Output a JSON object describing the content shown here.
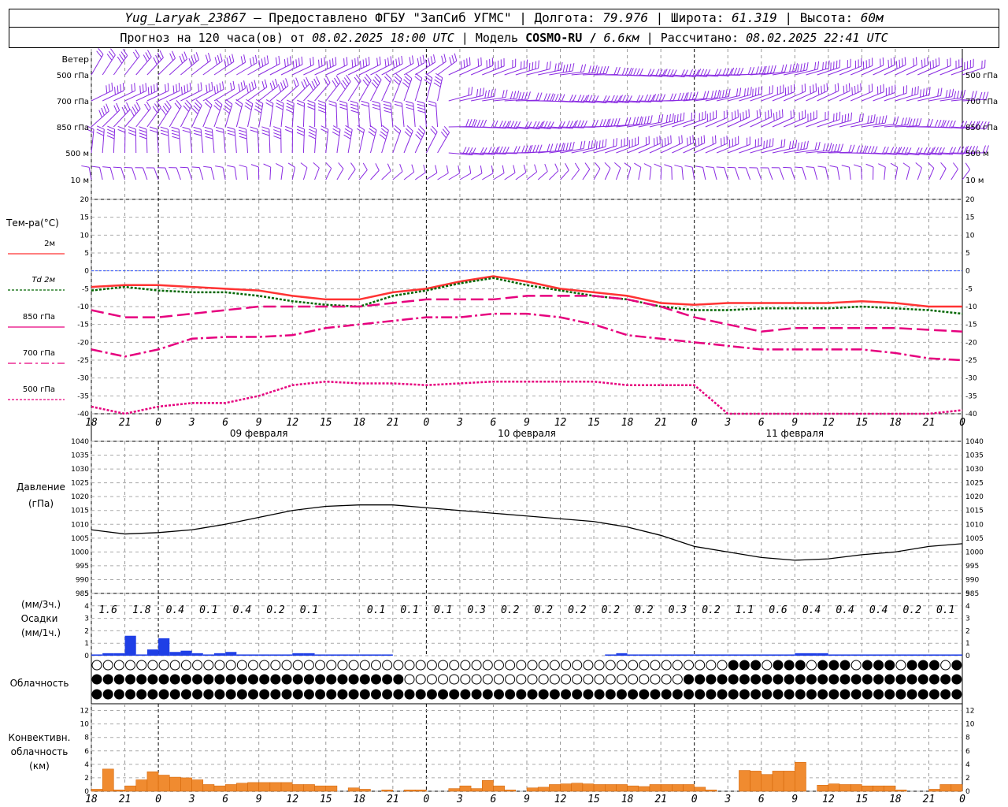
{
  "header": {
    "station": "Yug_Laryak_23867",
    "provided": "— Предоставлено ФГБУ \"ЗапСиб УГМС\"",
    "lon_label": "Долгота:",
    "lon": "79.976",
    "lat_label": "Широта:",
    "lat": "61.319",
    "alt_label": "Высота:",
    "alt": "60м",
    "forecast_label": "Прогноз на 120 часа(ов) от",
    "forecast_from": "08.02.2025 18:00 UTC",
    "model_label": "Модель",
    "model": "COSMO-RU /",
    "resolution": "6.6км",
    "calc_label": "Рассчитано:",
    "calc_time": "08.02.2025 22:41 UTC"
  },
  "panels": {
    "wind": {
      "title": "Ветер",
      "levels": [
        "500 гПа",
        "700 гПа",
        "850 гПа",
        "500 м",
        "10  м"
      ]
    },
    "temp": {
      "title": "Тем-ра(°С)",
      "legend": [
        {
          "label": "2м",
          "color": "#ff3333",
          "dash": "solid"
        },
        {
          "label": "Td  2м",
          "color": "#006600",
          "dash": "dot"
        },
        {
          "label": "850 гПа",
          "color": "#e6007e",
          "dash": "solid"
        },
        {
          "label": "700 гПа",
          "color": "#e6007e",
          "dash": "dashdot"
        },
        {
          "label": "500 гПа",
          "color": "#e6007e",
          "dash": "dot"
        }
      ]
    },
    "pressure": {
      "title": "Давление",
      "unit": "(гПа)"
    },
    "precip": {
      "unit_3h": "(мм/3ч.)",
      "title": "Осадки",
      "unit_1h": "(мм/1ч.)"
    },
    "cloud": {
      "title": "Облачность"
    },
    "conv": {
      "title1": "Конвективн.",
      "title2": "облачность",
      "unit": "(км)"
    }
  },
  "time_axis": {
    "hour_labels": [
      "18",
      "21",
      "0",
      "3",
      "6",
      "9",
      "12",
      "15",
      "18",
      "21",
      "0",
      "3",
      "6",
      "9",
      "12",
      "15",
      "18",
      "21",
      "0",
      "3",
      "6",
      "9",
      "12",
      "15",
      "18",
      "21",
      "0"
    ],
    "date_labels": [
      "09 февраля",
      "10 февраля",
      "11 февраля"
    ]
  },
  "colors": {
    "wind": "#8a2be2",
    "t2m": "#ff3333",
    "td": "#006600",
    "t850": "#e6007e",
    "t700": "#e6007e",
    "t500": "#e6007e",
    "pressure": "#000000",
    "precip": "#1f3fe6",
    "conv": "#f08b30",
    "zero_line": "#3355ff"
  },
  "chart_data": [
    {
      "type": "line",
      "title": "Тем-ра(°С)",
      "x_hours": [
        0,
        3,
        6,
        9,
        12,
        15,
        18,
        21,
        24,
        27,
        30,
        33,
        36,
        39,
        42,
        45,
        48,
        51,
        54,
        57,
        60,
        63,
        66,
        69,
        72,
        75,
        78
      ],
      "ylim": [
        -40,
        20
      ],
      "yticks": [
        20,
        15,
        10,
        5,
        0,
        -5,
        -10,
        -15,
        -20,
        -25,
        -30,
        -35,
        -40
      ],
      "series": [
        {
          "name": "2м",
          "values": [
            -4.5,
            -4.0,
            -4.0,
            -4.5,
            -5,
            -5.5,
            -7,
            -8,
            -8,
            -6,
            -5,
            -3,
            -1.5,
            -3,
            -5,
            -6,
            -7,
            -9,
            -9.5,
            -9,
            -9,
            -9,
            -9,
            -8.5,
            -9,
            -10,
            -10
          ]
        },
        {
          "name": "Td  2м",
          "values": [
            -5.5,
            -4.5,
            -5.5,
            -6,
            -6,
            -7,
            -8.5,
            -9.5,
            -10,
            -7,
            -5.5,
            -3.5,
            -2,
            -4,
            -5.5,
            -7,
            -8,
            -10,
            -11,
            -11,
            -10.5,
            -10.5,
            -10.5,
            -10,
            -10.5,
            -11,
            -12
          ]
        },
        {
          "name": "850 гПа",
          "values": [
            -11,
            -13,
            -13,
            -12,
            -11,
            -10,
            -10,
            -10,
            -10,
            -9,
            -8,
            -8,
            -8,
            -7,
            -7,
            -7,
            -8,
            -10,
            -13,
            -15,
            -17,
            -16,
            -16,
            -16,
            -16,
            -16.5,
            -17
          ]
        },
        {
          "name": "700 гПа",
          "values": [
            -22,
            -24,
            -22,
            -19,
            -18.5,
            -18.5,
            -18,
            -16,
            -15,
            -14,
            -13,
            -13,
            -12,
            -12,
            -13,
            -15,
            -18,
            -19,
            -20,
            -21,
            -22,
            -22,
            -22,
            -22,
            -23,
            -24.5,
            -25
          ]
        },
        {
          "name": "500 гПа",
          "values": [
            -38,
            -40,
            -38,
            -37,
            -37,
            -35,
            -32,
            -31,
            -31.5,
            -31.5,
            -32,
            -31.5,
            -31,
            -31,
            -31,
            -31,
            -32,
            -32,
            -32,
            -40,
            -41,
            -40,
            -40,
            -40.5,
            -40.5,
            -40,
            -39
          ]
        }
      ]
    },
    {
      "type": "line",
      "title": "Давление",
      "x_hours": [
        0,
        3,
        6,
        9,
        12,
        15,
        18,
        21,
        24,
        27,
        30,
        33,
        36,
        39,
        42,
        45,
        48,
        51,
        54,
        57,
        60,
        63,
        66,
        69,
        72,
        75,
        78
      ],
      "ylim": [
        985,
        1040
      ],
      "yticks": [
        1040,
        1035,
        1030,
        1025,
        1020,
        1015,
        1010,
        1005,
        1000,
        995,
        990,
        985
      ],
      "series": [
        {
          "name": "Давление",
          "values": [
            1008,
            1006.5,
            1007,
            1008,
            1010,
            1012.5,
            1015,
            1016.5,
            1017,
            1017,
            1016,
            1015,
            1014,
            1013,
            1012,
            1011,
            1009,
            1006,
            1002,
            1000,
            998,
            997,
            997.5,
            999,
            1000,
            1002,
            1003
          ]
        }
      ]
    },
    {
      "type": "bar",
      "title": "Осадки",
      "ylim": [
        0,
        5
      ],
      "yticks": [
        5,
        4,
        3,
        2,
        1,
        0
      ],
      "totals_3h": [
        "1.6",
        "1.8",
        "0.4",
        "0.1",
        "0.4",
        "0.2",
        "0.1",
        "",
        "0.1",
        "0.1",
        "0.1",
        "0.3",
        "0.2",
        "0.2",
        "0.2",
        "0.2",
        "0.2",
        "0.3",
        "0.2",
        "1.1",
        "0.6",
        "0.4",
        "0.4",
        "0.4",
        "0.2",
        "0.1"
      ],
      "x_hours": [
        0,
        1,
        2,
        3,
        4,
        5,
        6,
        7,
        8,
        9,
        10,
        11,
        12,
        13,
        14,
        15,
        16,
        17,
        18,
        19,
        20,
        21,
        22,
        23,
        24,
        25,
        26,
        27,
        28,
        29,
        30,
        31,
        32,
        33,
        34,
        35,
        36,
        37,
        38,
        39,
        40,
        41,
        42,
        43,
        44,
        45,
        46,
        47,
        48,
        49,
        50,
        51,
        52,
        53,
        54,
        55,
        56,
        57,
        58,
        59,
        60,
        61,
        62,
        63,
        64,
        65,
        66,
        67,
        68,
        69,
        70,
        71,
        72,
        73,
        74,
        75,
        76,
        77
      ],
      "values": [
        0.1,
        0.2,
        0.2,
        1.6,
        0.1,
        0.5,
        1.4,
        0.3,
        0.4,
        0.2,
        0.1,
        0.2,
        0.3,
        0.1,
        0.1,
        0.1,
        0.1,
        0.1,
        0.2,
        0.2,
        0.1,
        0.1,
        0.1,
        0.1,
        0.1,
        0.1,
        0.1,
        0.0,
        0.0,
        0.0,
        0.0,
        0.0,
        0.0,
        0.0,
        0.0,
        0.0,
        0.0,
        0.0,
        0.0,
        0.0,
        0.0,
        0.0,
        0.0,
        0.0,
        0.0,
        0.0,
        0.1,
        0.2,
        0.1,
        0.1,
        0.1,
        0.1,
        0.1,
        0.1,
        0.1,
        0.1,
        0.1,
        0.1,
        0.1,
        0.1,
        0.1,
        0.1,
        0.1,
        0.2,
        0.2,
        0.2,
        0.1,
        0.1,
        0.1,
        0.1,
        0.1,
        0.1,
        0.1,
        0.1,
        0.1,
        0.1,
        0.1,
        0.1
      ]
    },
    {
      "type": "bar",
      "title": "Конвективн. облачность",
      "ylim": [
        0,
        13
      ],
      "yticks": [
        12,
        10,
        8,
        6,
        4,
        2,
        0
      ],
      "x_hours": [
        0,
        1,
        2,
        3,
        4,
        5,
        6,
        7,
        8,
        9,
        10,
        11,
        12,
        13,
        14,
        15,
        16,
        17,
        18,
        19,
        20,
        21,
        22,
        23,
        24,
        25,
        26,
        27,
        28,
        29,
        30,
        31,
        32,
        33,
        34,
        35,
        36,
        37,
        38,
        39,
        40,
        41,
        42,
        43,
        44,
        45,
        46,
        47,
        48,
        49,
        50,
        51,
        52,
        53,
        54,
        55,
        56,
        57,
        58,
        59,
        60,
        61,
        62,
        63,
        64,
        65,
        66,
        67,
        68,
        69,
        70,
        71,
        72,
        73,
        74,
        75,
        76,
        77
      ],
      "values": [
        0.3,
        3.3,
        0.2,
        0.8,
        1.7,
        2.9,
        2.4,
        2.1,
        2.0,
        1.7,
        1.0,
        0.8,
        1.0,
        1.2,
        1.3,
        1.3,
        1.3,
        1.3,
        1.0,
        1.0,
        0.8,
        0.8,
        0.0,
        0.5,
        0.3,
        0.0,
        0.2,
        0.0,
        0.2,
        0.2,
        0.0,
        0.0,
        0.4,
        0.8,
        0.4,
        1.6,
        0.8,
        0.2,
        0.0,
        0.5,
        0.6,
        1.0,
        1.1,
        1.2,
        1.1,
        1.0,
        1.0,
        1.0,
        0.8,
        0.7,
        1.0,
        1.0,
        1.0,
        1.0,
        0.6,
        0.2,
        0.0,
        0.0,
        3.1,
        3.0,
        2.5,
        3.0,
        3.0,
        4.3,
        0.0,
        0.9,
        1.1,
        1.0,
        1.0,
        0.8,
        0.8,
        0.8,
        0.2,
        0.0,
        0.0,
        0.3,
        1.0,
        1.0
      ]
    }
  ]
}
